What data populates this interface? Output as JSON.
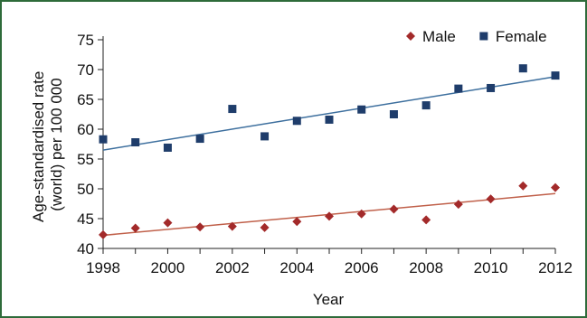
{
  "chart_data": {
    "type": "scatter",
    "title": "",
    "xlabel": "Year",
    "ylabel_lines": [
      "Age-standardised rate",
      "(world) per 100 000"
    ],
    "xlim": [
      1998,
      2012
    ],
    "ylim": [
      40,
      75
    ],
    "x_ticks": [
      1998,
      2000,
      2002,
      2004,
      2006,
      2008,
      2010,
      2012
    ],
    "y_ticks": [
      40,
      45,
      50,
      55,
      60,
      65,
      70,
      75
    ],
    "grid": false,
    "legend_position": "top-right",
    "x": [
      1998,
      1999,
      2000,
      2001,
      2002,
      2003,
      2004,
      2005,
      2006,
      2007,
      2008,
      2009,
      2010,
      2011,
      2012
    ],
    "series": [
      {
        "name": "Male",
        "marker": "diamond",
        "color": "#a32a2a",
        "trend_color": "#c0604a",
        "values": [
          42.3,
          43.4,
          44.3,
          43.6,
          43.7,
          43.5,
          44.5,
          45.4,
          45.8,
          46.6,
          44.8,
          47.4,
          48.3,
          50.5,
          50.2
        ],
        "trend": [
          42.2,
          49.2
        ]
      },
      {
        "name": "Female",
        "marker": "square",
        "color": "#1f3d6b",
        "trend_color": "#3d6f9e",
        "values": [
          58.3,
          57.8,
          56.9,
          58.4,
          63.4,
          58.8,
          61.4,
          61.6,
          63.3,
          62.5,
          64.0,
          66.8,
          66.9,
          70.2,
          69.0
        ],
        "trend": [
          56.5,
          68.8
        ]
      }
    ]
  }
}
